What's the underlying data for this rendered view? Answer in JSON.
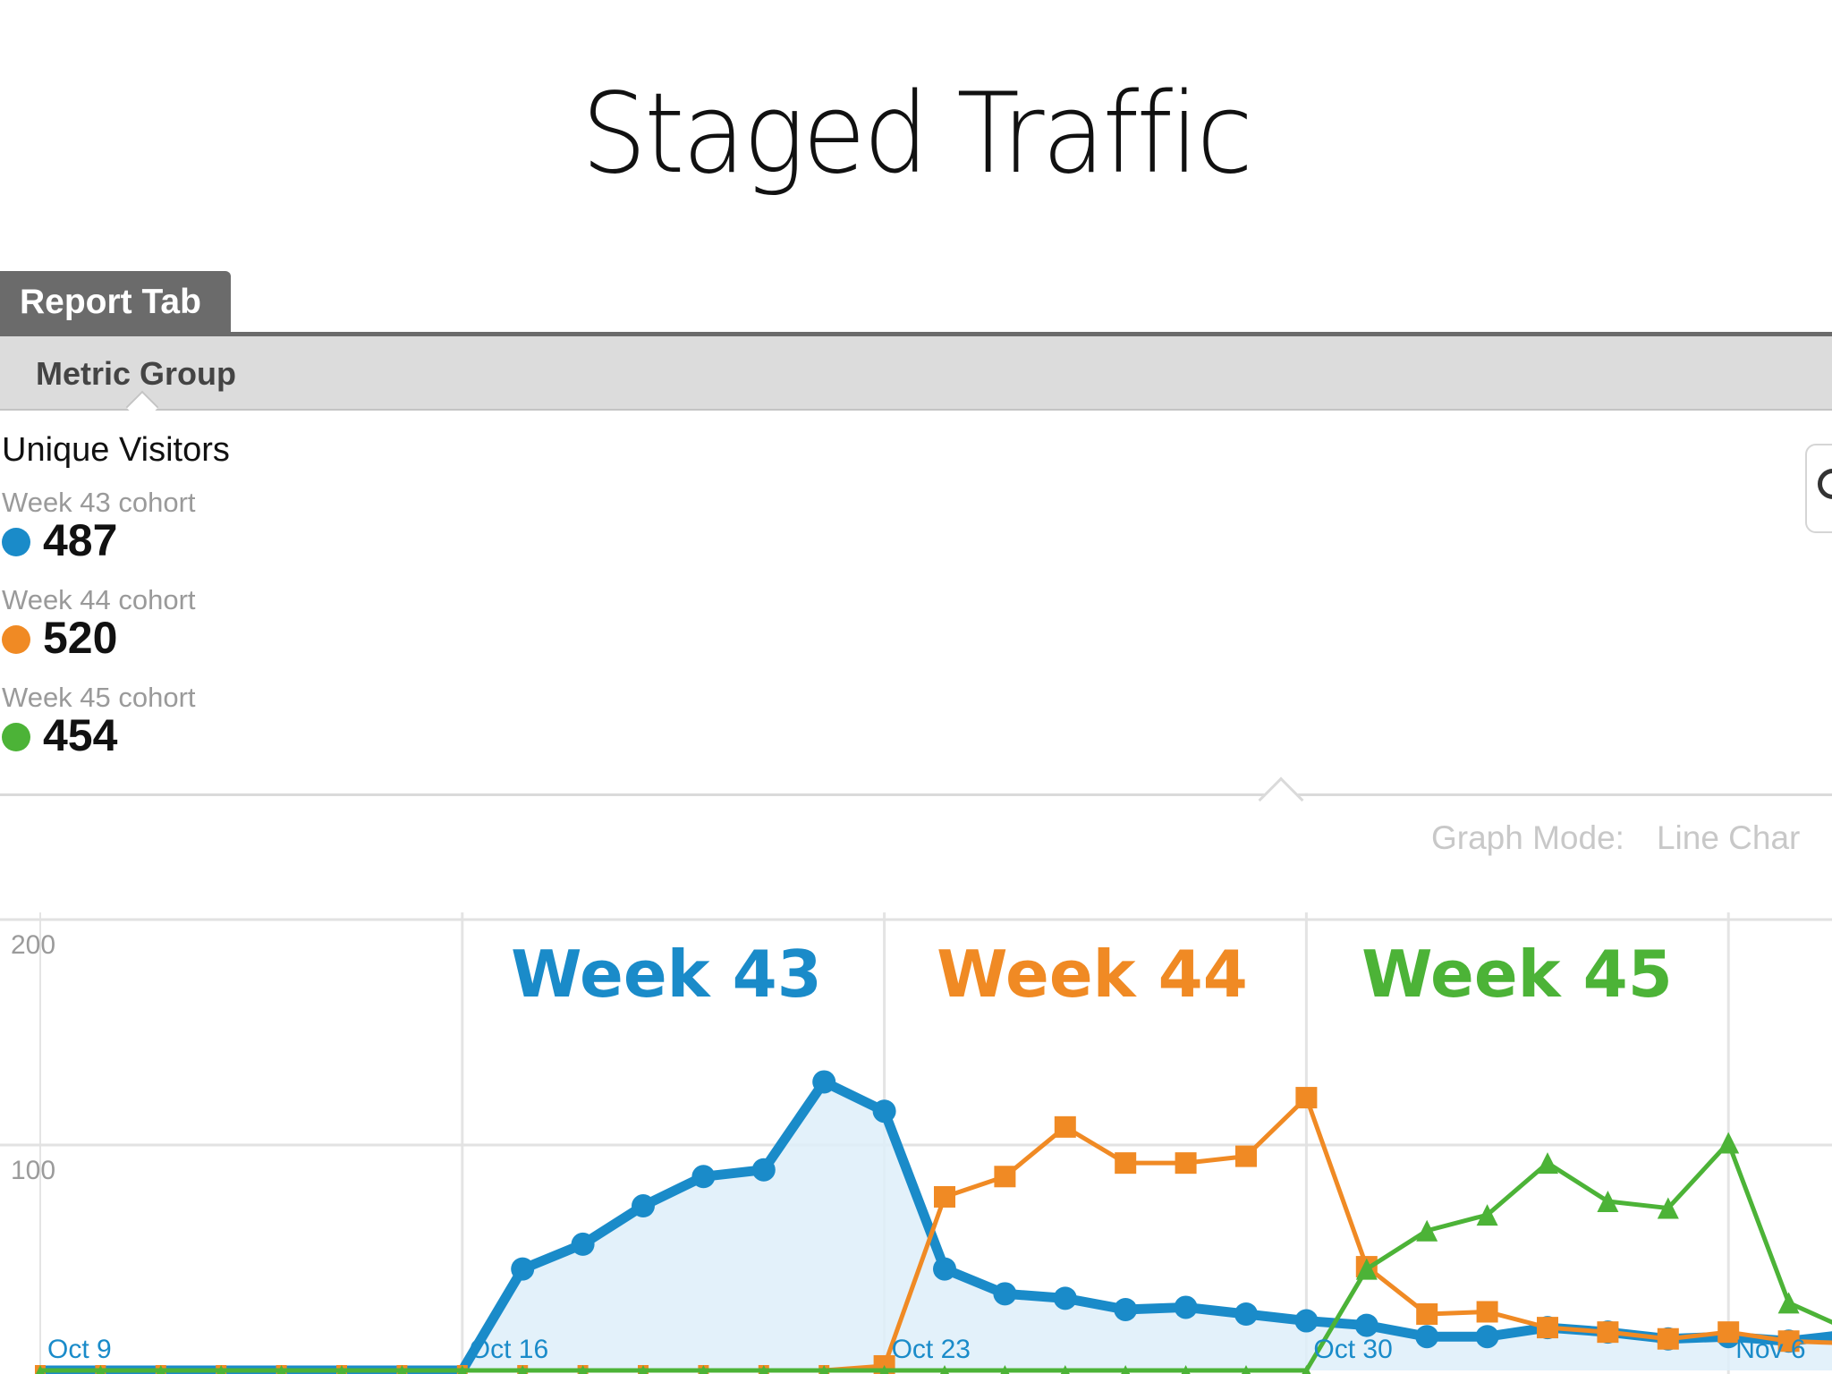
{
  "slide": {
    "title": "Staged Traffic"
  },
  "report": {
    "tab_label": "Report Tab",
    "metric_group_label": "Metric Group",
    "metric_title": "Unique Visitors",
    "cohorts": [
      {
        "label": "Week 43 cohort",
        "value": "487",
        "color": "#1a8bc9"
      },
      {
        "label": "Week 44 cohort",
        "value": "520",
        "color": "#f08a24"
      },
      {
        "label": "Week 45 cohort",
        "value": "454",
        "color": "#4cb337"
      }
    ],
    "graph_mode_label": "Graph Mode:",
    "graph_mode_value": "Line Char"
  },
  "chart_data": {
    "type": "line",
    "x": [
      "Oct 9",
      "Oct 10",
      "Oct 11",
      "Oct 12",
      "Oct 13",
      "Oct 14",
      "Oct 15",
      "Oct 16",
      "Oct 17",
      "Oct 18",
      "Oct 19",
      "Oct 20",
      "Oct 21",
      "Oct 22",
      "Oct 23",
      "Oct 24",
      "Oct 25",
      "Oct 26",
      "Oct 27",
      "Oct 28",
      "Oct 29",
      "Oct 30",
      "Oct 31",
      "Nov 1",
      "Nov 2",
      "Nov 3",
      "Nov 4",
      "Nov 5",
      "Nov 6",
      "Nov 7",
      "Nov 8"
    ],
    "x_tick_labels": [
      "Oct 9",
      "Oct 16",
      "Oct 23",
      "Oct 30",
      "Nov 6"
    ],
    "y_ticks": [
      100,
      200
    ],
    "ylim": [
      0,
      200
    ],
    "annotations": [
      "Week 43",
      "Week 44",
      "Week 45"
    ],
    "grid": true,
    "series": [
      {
        "name": "Week 43 cohort",
        "color": "#1a8bc9",
        "marker": "circle",
        "area": true,
        "values": [
          0,
          0,
          0,
          0,
          0,
          0,
          0,
          0,
          45,
          56,
          73,
          86,
          89,
          128,
          115,
          45,
          34,
          32,
          27,
          28,
          25,
          22,
          20,
          15,
          15,
          19,
          17,
          14,
          15,
          13,
          16
        ]
      },
      {
        "name": "Week 44 cohort",
        "color": "#f08a24",
        "marker": "square",
        "area": false,
        "values": [
          0,
          0,
          0,
          0,
          0,
          0,
          0,
          0,
          0,
          0,
          0,
          0,
          0,
          0,
          2,
          77,
          86,
          108,
          92,
          92,
          95,
          121,
          46,
          25,
          26,
          19,
          17,
          14,
          17,
          13,
          12
        ]
      },
      {
        "name": "Week 45 cohort",
        "color": "#4cb337",
        "marker": "triangle",
        "area": false,
        "values": [
          0,
          0,
          0,
          0,
          0,
          0,
          0,
          0,
          0,
          0,
          0,
          0,
          0,
          0,
          0,
          0,
          0,
          0,
          0,
          0,
          0,
          0,
          45,
          62,
          69,
          92,
          75,
          72,
          101,
          30,
          18
        ]
      }
    ]
  }
}
